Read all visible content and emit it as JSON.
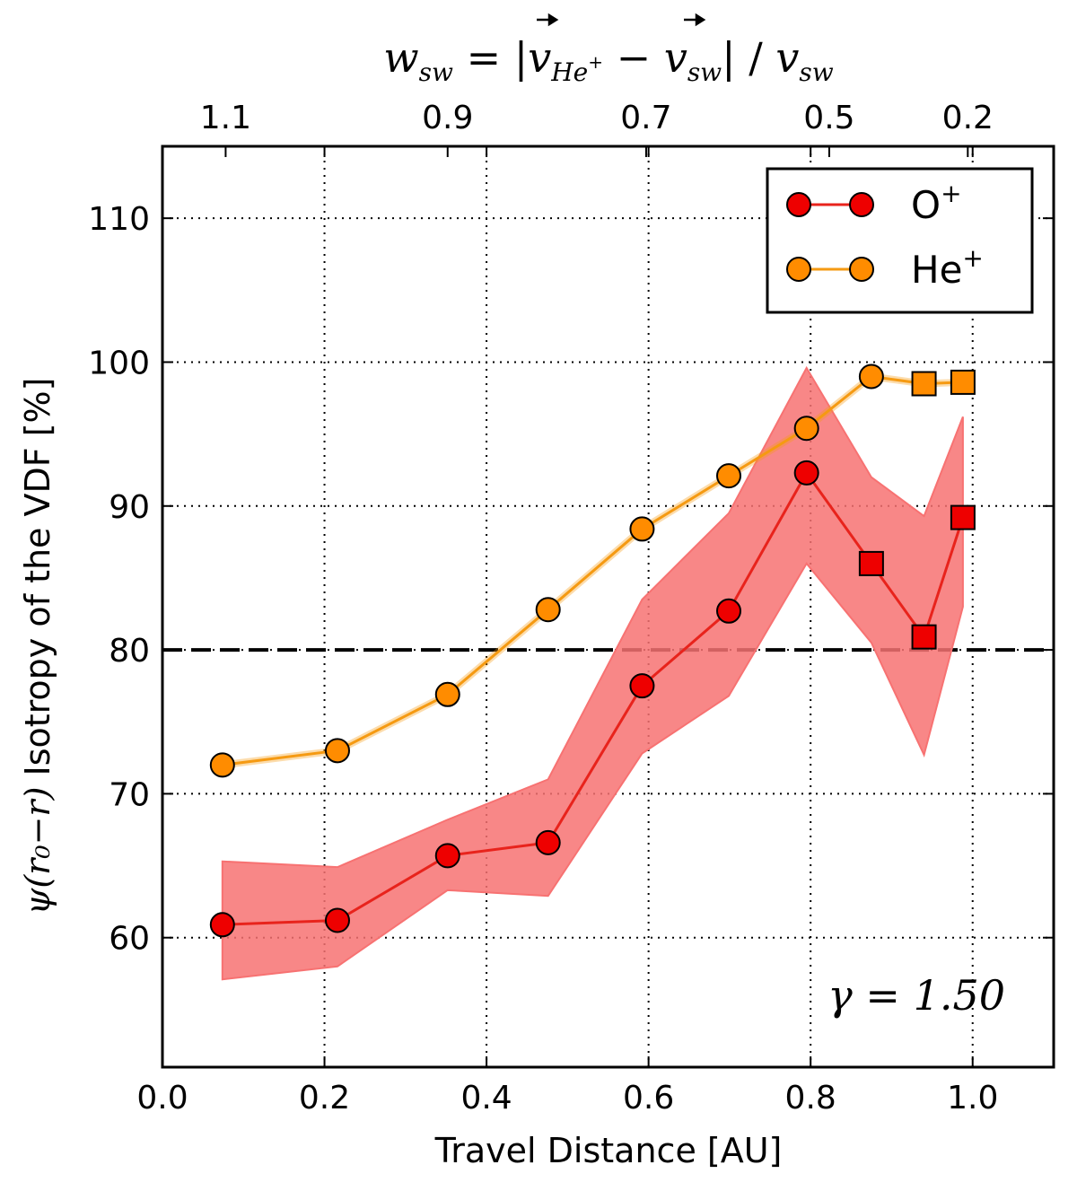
{
  "chart_data": {
    "type": "line",
    "xlabel": "Travel Distance [AU]",
    "ylabel_math": "ψ(r₀−r)",
    "ylabel_text": " Isotropy of the VDF [%]",
    "top_axis_label": "w_sw = |v_He+ − v_sw| / v_sw",
    "annotation": "γ = 1.50",
    "xlim": [
      0.0,
      1.1
    ],
    "ylim": [
      51,
      115
    ],
    "x_ticks": [
      0.0,
      0.2,
      0.4,
      0.6,
      0.8,
      1.0
    ],
    "x_tick_labels": [
      "0.0",
      "0.2",
      "0.4",
      "0.6",
      "0.8",
      "1.0"
    ],
    "y_ticks": [
      60,
      70,
      80,
      90,
      100,
      110
    ],
    "y_tick_labels": [
      "60",
      "70",
      "80",
      "90",
      "100",
      "110"
    ],
    "top_ticks": [
      {
        "x": 0.078,
        "label": "1.1"
      },
      {
        "x": 0.352,
        "label": "0.9"
      },
      {
        "x": 0.597,
        "label": "0.7"
      },
      {
        "x": 0.823,
        "label": "0.5"
      },
      {
        "x": 0.994,
        "label": "0.2"
      }
    ],
    "grid": true,
    "reference_line": {
      "y": 80,
      "style": "dashed",
      "color": "#000000"
    },
    "legend_position": "top-right",
    "series": [
      {
        "name": "O⁺",
        "legend_label": "O",
        "legend_sup": "+",
        "color": "#ee0000",
        "line_color": "#e8231c",
        "band_color": "#f77272",
        "x": [
          0.074,
          0.216,
          0.352,
          0.476,
          0.592,
          0.699,
          0.795,
          0.875,
          0.94,
          0.988
        ],
        "values": [
          60.9,
          61.2,
          65.7,
          66.6,
          77.5,
          82.7,
          92.3,
          86.0,
          80.9,
          89.2
        ],
        "markers": [
          "circle",
          "circle",
          "circle",
          "circle",
          "circle",
          "circle",
          "circle",
          "square",
          "square",
          "square"
        ],
        "band_upper": [
          65.3,
          64.9,
          68.2,
          71.0,
          83.5,
          89.5,
          99.6,
          92.0,
          89.3,
          96.2
        ],
        "band_lower": [
          57.1,
          58.0,
          63.3,
          62.9,
          72.8,
          76.8,
          86.0,
          80.5,
          72.7,
          83.0
        ]
      },
      {
        "name": "He⁺",
        "legend_label": "He",
        "legend_sup": "+",
        "color": "#ff8c00",
        "line_color": "#f59a12",
        "x": [
          0.074,
          0.216,
          0.352,
          0.476,
          0.592,
          0.699,
          0.795,
          0.875,
          0.94,
          0.988
        ],
        "values": [
          72.0,
          73.0,
          76.9,
          82.8,
          88.4,
          92.1,
          95.4,
          99.0,
          98.5,
          98.6
        ],
        "markers": [
          "circle",
          "circle",
          "circle",
          "circle",
          "circle",
          "circle",
          "circle",
          "circle",
          "square",
          "square"
        ]
      }
    ]
  }
}
